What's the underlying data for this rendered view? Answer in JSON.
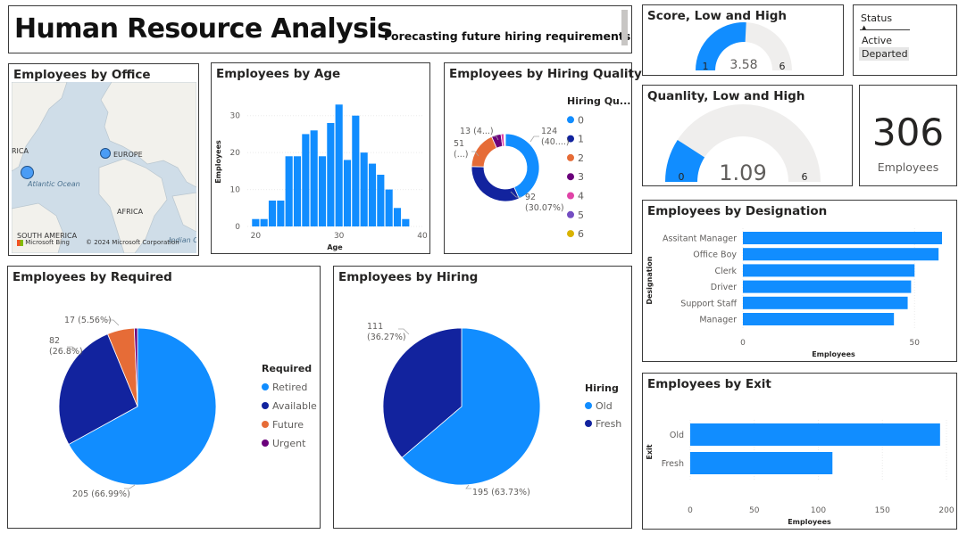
{
  "header": {
    "title": "Human Resource Analysis",
    "subtitle": "Forecasting future hiring requirements"
  },
  "colors": {
    "blue": "#118dff",
    "navy": "#12239e",
    "orange": "#e66c37",
    "purple": "#6b007b",
    "pink": "#e044a7",
    "violet": "#744ec2",
    "gold": "#d9b300",
    "track": "#efeeed"
  },
  "map": {
    "title": "Employees by Office",
    "labels": [
      "RICA",
      "EUROPE",
      "Atlantic Ocean",
      "AFRICA",
      "SOUTH AMERICA",
      "Indian O"
    ],
    "bing": "Microsoft Bing",
    "copyright": "© 2024 Microsoft Corporation",
    "points": [
      "North America",
      "Europe"
    ]
  },
  "age_chart": {
    "title": "Employees by Age",
    "chart_data": {
      "type": "bar",
      "xlabel": "Age",
      "ylabel": "Employees",
      "xlim": [
        19,
        40
      ],
      "ylim": [
        0,
        35
      ],
      "x_ticks": [
        20,
        30,
        40
      ],
      "y_ticks": [
        0,
        10,
        20,
        30
      ],
      "x": [
        20,
        21,
        22,
        23,
        24,
        25,
        26,
        27,
        28,
        29,
        30,
        31,
        32,
        33,
        34,
        35,
        36,
        37,
        38
      ],
      "values": [
        2,
        2,
        7,
        7,
        19,
        19,
        25,
        26,
        19,
        28,
        33,
        18,
        30,
        20,
        17,
        14,
        10,
        5,
        2
      ]
    }
  },
  "hiring_quality": {
    "title": "Employees by Hiring Quality",
    "legend_title": "Hiring Qu...",
    "chart_data": {
      "type": "pie",
      "categories": [
        "0",
        "1",
        "2",
        "3",
        "4",
        "5",
        "6"
      ],
      "values": [
        124,
        92,
        51,
        13,
        4,
        1,
        1
      ],
      "colors": [
        "#118dff",
        "#12239e",
        "#e66c37",
        "#6b007b",
        "#e044a7",
        "#744ec2",
        "#d9b300"
      ],
      "data_labels": [
        [
          "124",
          "(40....)"
        ],
        [
          "92",
          "(30.07%)"
        ],
        [
          "51",
          "(...)"
        ],
        [
          "13 (4...)"
        ]
      ]
    }
  },
  "required": {
    "title": "Employees by Required",
    "legend_title": "Required",
    "chart_data": {
      "type": "pie",
      "categories": [
        "Retired",
        "Available",
        "Future",
        "Urgent"
      ],
      "values": [
        205,
        82,
        17,
        2
      ],
      "colors": [
        "#118dff",
        "#12239e",
        "#e66c37",
        "#6b007b"
      ],
      "data_labels": [
        [
          "205 (66.99%)"
        ],
        [
          "82",
          "(26.8%)"
        ],
        [
          "17 (5.56%)"
        ]
      ]
    }
  },
  "hiring": {
    "title": "Employees by Hiring",
    "legend_title": "Hiring",
    "chart_data": {
      "type": "pie",
      "categories": [
        "Old",
        "Fresh"
      ],
      "values": [
        195,
        111
      ],
      "colors": [
        "#118dff",
        "#12239e"
      ],
      "data_labels": [
        [
          "195 (63.73%)"
        ],
        [
          "111",
          "(36.27%)"
        ]
      ]
    }
  },
  "score_gauge": {
    "title": "Score, Low and High",
    "value": 3.58,
    "value_label": "3.58",
    "min": 1,
    "max": 6,
    "min_label": "1",
    "max_label": "6"
  },
  "quality_gauge": {
    "title": "Quanlity, Low and High",
    "value": 1.09,
    "value_label": "1.09",
    "min": 0,
    "max": 6,
    "min_label": "0",
    "max_label": "6"
  },
  "status_slicer": {
    "title": "Status",
    "options": [
      "Active",
      "Departed"
    ],
    "selected": "Departed"
  },
  "count_card": {
    "value": "306",
    "label": "Employees"
  },
  "designation": {
    "title": "Employees by Designation",
    "chart_data": {
      "type": "bar",
      "orientation": "horizontal",
      "categories": [
        "Assitant Manager",
        "Office Boy",
        "Clerk",
        "Driver",
        "Support Staff",
        "Manager"
      ],
      "values": [
        58,
        57,
        50,
        49,
        48,
        44
      ],
      "xlabel": "Employees",
      "ylabel": "Designation",
      "xlim": [
        0,
        58
      ],
      "x_ticks": [
        0,
        50
      ]
    }
  },
  "exit": {
    "title": "Employees by Exit",
    "chart_data": {
      "type": "bar",
      "orientation": "horizontal",
      "categories": [
        "Old",
        "Fresh"
      ],
      "values": [
        195,
        111
      ],
      "xlabel": "Employees",
      "ylabel": "Exit",
      "xlim": [
        0,
        200
      ],
      "x_ticks": [
        0,
        50,
        100,
        150,
        200
      ]
    }
  }
}
